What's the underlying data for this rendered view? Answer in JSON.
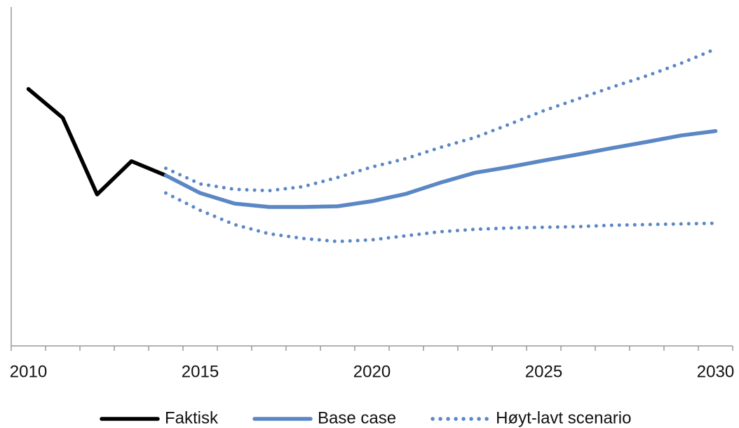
{
  "chart_data": {
    "type": "line",
    "x": [
      2010,
      2011,
      2012,
      2013,
      2014,
      2015,
      2016,
      2017,
      2018,
      2019,
      2020,
      2021,
      2022,
      2023,
      2024,
      2025,
      2026,
      2027,
      2028,
      2029,
      2030
    ],
    "series": [
      {
        "name": "Faktisk",
        "color": "#000000",
        "style": "solid",
        "values": [
          75.8,
          67.3,
          44.7,
          54.5,
          50.3,
          null,
          null,
          null,
          null,
          null,
          null,
          null,
          null,
          null,
          null,
          null,
          null,
          null,
          null,
          null,
          null
        ]
      },
      {
        "name": "Base case",
        "color": "#5b87c5",
        "style": "solid",
        "values": [
          null,
          null,
          null,
          null,
          50.3,
          45.1,
          42.0,
          41.0,
          41.0,
          41.2,
          42.7,
          44.9,
          48.2,
          51.1,
          52.8,
          54.7,
          56.5,
          58.4,
          60.2,
          62.1,
          63.4
        ]
      },
      {
        "name": "Høyt-lavt scenario",
        "color": "#5b87c5",
        "style": "dotted",
        "values": [
          null,
          null,
          null,
          null,
          52.4,
          47.8,
          46.2,
          45.8,
          47.0,
          49.7,
          52.8,
          55.3,
          58.6,
          61.5,
          65.4,
          69.4,
          72.9,
          76.4,
          79.7,
          83.4,
          87.6
        ]
      },
      {
        "color": "#5b87c5",
        "style": "dotted",
        "values": [
          null,
          null,
          null,
          null,
          45.1,
          40.0,
          35.8,
          33.1,
          31.7,
          30.8,
          31.3,
          32.5,
          33.7,
          34.4,
          34.8,
          35.0,
          35.2,
          35.6,
          35.8,
          36.0,
          36.2
        ]
      }
    ],
    "xlim": [
      2009.5,
      2030.5
    ],
    "xticks": [
      2010,
      2015,
      2020,
      2025,
      2030
    ],
    "ylim": [
      0,
      100
    ],
    "legend": "bottom"
  }
}
